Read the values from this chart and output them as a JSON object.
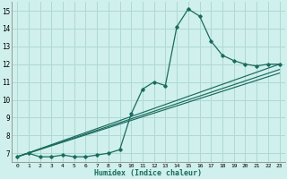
{
  "xlabel": "Humidex (Indice chaleur)",
  "bg_color": "#cff0ec",
  "grid_color": "#b0d8d4",
  "line_color": "#1a6b5e",
  "xlim": [
    -0.5,
    23.5
  ],
  "ylim": [
    6.5,
    15.5
  ],
  "xticks": [
    0,
    1,
    2,
    3,
    4,
    5,
    6,
    7,
    8,
    9,
    10,
    11,
    12,
    13,
    14,
    15,
    16,
    17,
    18,
    19,
    20,
    21,
    22,
    23
  ],
  "yticks": [
    7,
    8,
    9,
    10,
    11,
    12,
    13,
    14,
    15
  ],
  "series1_x": [
    0,
    1,
    2,
    3,
    4,
    5,
    6,
    7,
    8,
    9,
    10,
    11,
    12,
    13,
    14,
    15,
    16,
    17,
    18,
    19,
    20,
    21,
    22,
    23
  ],
  "series1_y": [
    6.8,
    7.0,
    6.8,
    6.8,
    6.9,
    6.8,
    6.8,
    6.9,
    7.0,
    7.2,
    9.2,
    10.6,
    11.0,
    10.8,
    14.1,
    15.1,
    14.7,
    13.3,
    12.5,
    12.2,
    12.0,
    11.9,
    12.0,
    12.0
  ],
  "series2_x": [
    0,
    23
  ],
  "series2_y": [
    6.8,
    12.0
  ],
  "series3_x": [
    0,
    23
  ],
  "series3_y": [
    6.8,
    11.7
  ],
  "series4_x": [
    0,
    23
  ],
  "series4_y": [
    6.8,
    11.5
  ]
}
